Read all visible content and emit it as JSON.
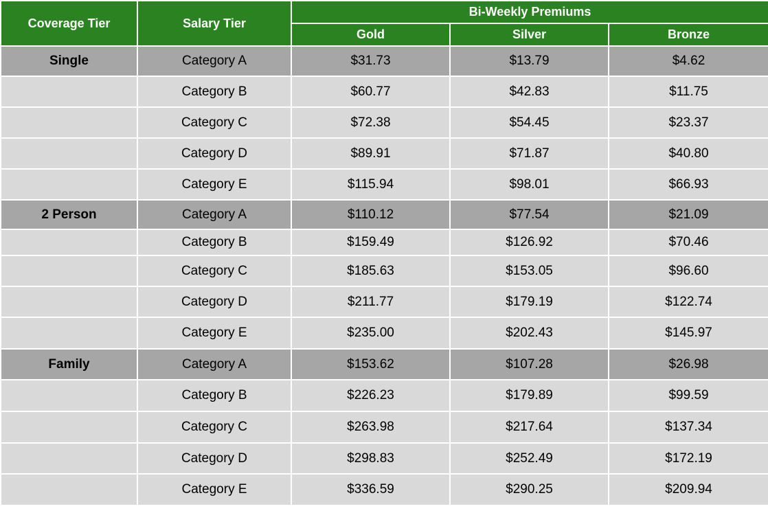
{
  "header": {
    "coverage_tier": "Coverage Tier",
    "salary_tier": "Salary Tier",
    "group": "Bi-Weekly Premiums",
    "plans": [
      "Gold",
      "Silver",
      "Bronze"
    ]
  },
  "rows": [
    {
      "tier": "Single",
      "category": "Category A",
      "gold": "$31.73",
      "silver": "$13.79",
      "bronze": "$4.62"
    },
    {
      "tier": "",
      "category": "Category B",
      "gold": "$60.77",
      "silver": "$42.83",
      "bronze": "$11.75"
    },
    {
      "tier": "",
      "category": "Category C",
      "gold": "$72.38",
      "silver": "$54.45",
      "bronze": "$23.37"
    },
    {
      "tier": "",
      "category": "Category D",
      "gold": "$89.91",
      "silver": "$71.87",
      "bronze": "$40.80"
    },
    {
      "tier": "",
      "category": "Category E",
      "gold": "$115.94",
      "silver": "$98.01",
      "bronze": "$66.93"
    },
    {
      "tier": "2 Person",
      "category": "Category A",
      "gold": "$110.12",
      "silver": "$77.54",
      "bronze": "$21.09"
    },
    {
      "tier": "",
      "category": "Category B",
      "gold": "$159.49",
      "silver": "$126.92",
      "bronze": "$70.46"
    },
    {
      "tier": "",
      "category": "Category C",
      "gold": "$185.63",
      "silver": "$153.05",
      "bronze": "$96.60"
    },
    {
      "tier": "",
      "category": "Category D",
      "gold": "$211.77",
      "silver": "$179.19",
      "bronze": "$122.74"
    },
    {
      "tier": "",
      "category": "Category E",
      "gold": "$235.00",
      "silver": "$202.43",
      "bronze": "$145.97"
    },
    {
      "tier": "Family",
      "category": "Category A",
      "gold": "$153.62",
      "silver": "$107.28",
      "bronze": "$26.98"
    },
    {
      "tier": "",
      "category": "Category B",
      "gold": "$226.23",
      "silver": "$179.89",
      "bronze": "$99.59"
    },
    {
      "tier": "",
      "category": "Category C",
      "gold": "$263.98",
      "silver": "$217.64",
      "bronze": "$137.34"
    },
    {
      "tier": "",
      "category": "Category D",
      "gold": "$298.83",
      "silver": "$252.49",
      "bronze": "$172.19"
    },
    {
      "tier": "",
      "category": "Category E",
      "gold": "$336.59",
      "silver": "$290.25",
      "bronze": "$209.94"
    }
  ]
}
